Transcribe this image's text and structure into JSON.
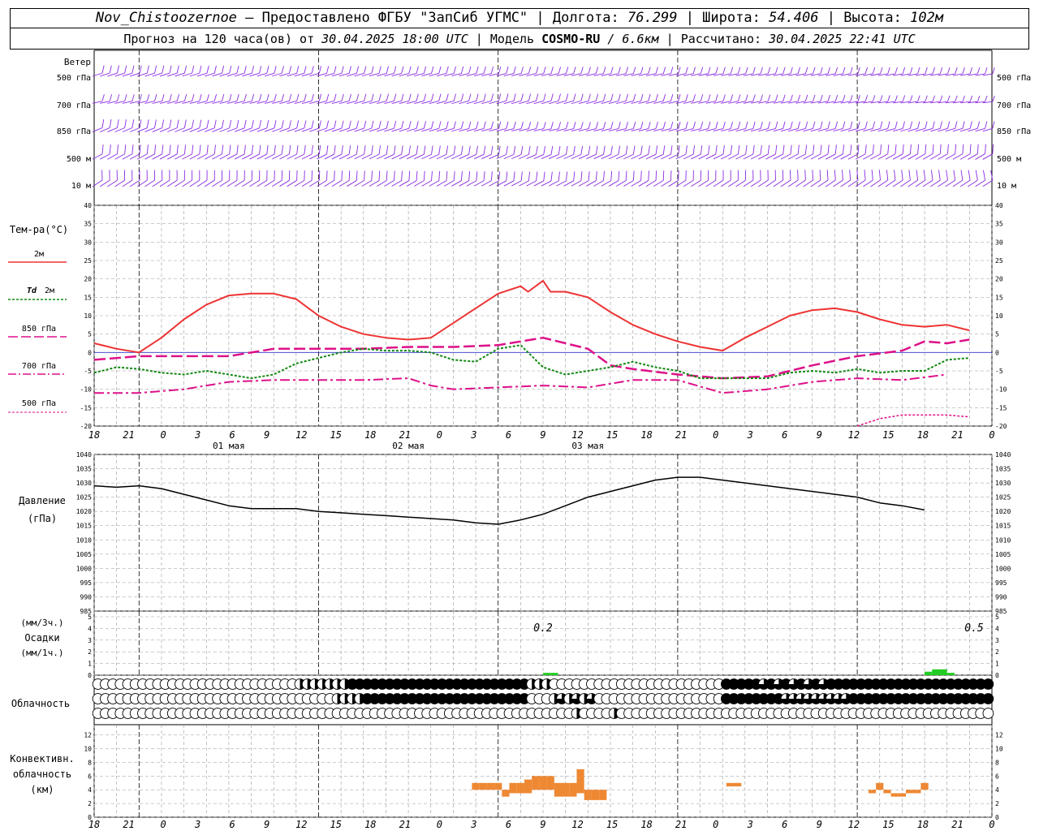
{
  "header": {
    "station": "Nov_Chistoozernoe",
    "provider": "– Предоставлено ФГБУ \"ЗапСиб УГМС\"",
    "lon_label": "Долгота:",
    "lon_value": "76.299",
    "lat_label": "Широта:",
    "lat_value": "54.406",
    "alt_label": "Высота:",
    "alt_value": "102м",
    "forecast_label": "Прогноз на 120 часа(ов) от",
    "forecast_start": "30.04.2025 18:00 UTC",
    "model_label": "Модель",
    "model_name": "COSMO-RU",
    "model_res": "/ 6.6км",
    "calc_label": "Рассчитано:",
    "calc_time": "30.04.2025 22:41 UTC"
  },
  "labels": {
    "wind": "Ветер",
    "levels": [
      "500 гПа",
      "700 гПа",
      "850 гПа",
      "500 м",
      "10 м"
    ],
    "temp_title": "Тем-ра(°C)",
    "legend_2m": "2м",
    "legend_td_prefix": "Td",
    "legend_td": "2м",
    "legend_850": "850 гПа",
    "legend_700": "700 гПа",
    "legend_500": "500 гПа",
    "pressure": "Давление",
    "pressure_unit": "(гПа)",
    "precip_unit1": "(мм/3ч.)",
    "precip": "Осадки",
    "precip_unit2": "(мм/1ч.)",
    "cloud": "Облачность",
    "conv1": "Конвективн.",
    "conv2": "облачность",
    "conv3": "(км)",
    "precip_annot": [
      "0.2",
      "0.5"
    ]
  },
  "axis": {
    "hour_ticks": [
      "18",
      "21",
      "0",
      "3",
      "6",
      "9",
      "12",
      "15",
      "18",
      "21",
      "0",
      "3",
      "6",
      "9",
      "12",
      "15",
      "18",
      "21",
      "0",
      "3",
      "6",
      "9",
      "12",
      "15",
      "18",
      "21",
      "0"
    ],
    "days": [
      "01 мая",
      "02 мая",
      "03 мая"
    ],
    "temp_ticks": [
      "40",
      "35",
      "30",
      "25",
      "20",
      "15",
      "10",
      "5",
      "0",
      "-5",
      "-10",
      "-15",
      "-20"
    ],
    "pres_ticks": [
      "1040",
      "1035",
      "1030",
      "1025",
      "1020",
      "1015",
      "1010",
      "1005",
      "1000",
      "995",
      "990",
      "985"
    ],
    "precip_ticks": [
      "5",
      "4",
      "3",
      "2",
      "1",
      "0"
    ],
    "conv_ticks": [
      "12",
      "10",
      "8",
      "6",
      "4",
      "2",
      "0"
    ]
  },
  "colors": {
    "wind": "#8a2be2",
    "t2m": "#ee3333",
    "td": "#118811",
    "t850": "#dd1188",
    "t700": "#dd1188",
    "t500": "#dd1188",
    "pressure": "#000000",
    "precip": "#22cc22",
    "conv": "#ee8833",
    "zero_line": "#3333cc",
    "grid": "#999999"
  },
  "chart_data": {
    "type": "line",
    "time_axis": "hours since 30.04.2025 18:00 UTC",
    "temp_ylim": [
      -20,
      40
    ],
    "t2m": [
      [
        0,
        2.5
      ],
      [
        3,
        1
      ],
      [
        6,
        0
      ],
      [
        9,
        4
      ],
      [
        12,
        9
      ],
      [
        15,
        13
      ],
      [
        18,
        15.5
      ],
      [
        21,
        16
      ],
      [
        24,
        16
      ],
      [
        27,
        14.5
      ],
      [
        30,
        10
      ],
      [
        33,
        7
      ],
      [
        36,
        5
      ],
      [
        39,
        4
      ],
      [
        42,
        3.5
      ],
      [
        45,
        4
      ],
      [
        48,
        8
      ],
      [
        51,
        12
      ],
      [
        54,
        16
      ],
      [
        57,
        18
      ],
      [
        58,
        16.5
      ],
      [
        60,
        19.5
      ],
      [
        61,
        16.5
      ],
      [
        63,
        16.5
      ],
      [
        66,
        15
      ],
      [
        69,
        11
      ],
      [
        72,
        7.5
      ],
      [
        75,
        5
      ],
      [
        78,
        3
      ],
      [
        81,
        1.5
      ],
      [
        84,
        0.5
      ],
      [
        87,
        4
      ],
      [
        90,
        7
      ],
      [
        93,
        10
      ],
      [
        96,
        11.5
      ],
      [
        99,
        12
      ],
      [
        102,
        11
      ],
      [
        105,
        9
      ],
      [
        108,
        7.5
      ],
      [
        111,
        7
      ],
      [
        114,
        7.5
      ],
      [
        117,
        6
      ]
    ],
    "td2m": [
      [
        0,
        -5.5
      ],
      [
        3,
        -4
      ],
      [
        6,
        -4.5
      ],
      [
        9,
        -5.5
      ],
      [
        12,
        -6
      ],
      [
        15,
        -5
      ],
      [
        18,
        -6
      ],
      [
        21,
        -7
      ],
      [
        24,
        -6
      ],
      [
        27,
        -3
      ],
      [
        30,
        -1.5
      ],
      [
        33,
        0
      ],
      [
        36,
        1
      ],
      [
        39,
        0.5
      ],
      [
        42,
        0.5
      ],
      [
        45,
        0
      ],
      [
        48,
        -2
      ],
      [
        51,
        -2.5
      ],
      [
        54,
        1
      ],
      [
        57,
        2
      ],
      [
        60,
        -4
      ],
      [
        63,
        -6
      ],
      [
        66,
        -5
      ],
      [
        69,
        -4
      ],
      [
        72,
        -2.5
      ],
      [
        75,
        -4
      ],
      [
        78,
        -5
      ],
      [
        81,
        -7
      ],
      [
        84,
        -7
      ],
      [
        87,
        -7
      ],
      [
        90,
        -7
      ],
      [
        93,
        -5.5
      ],
      [
        96,
        -5
      ],
      [
        99,
        -5.5
      ],
      [
        102,
        -4.5
      ],
      [
        105,
        -5.5
      ],
      [
        108,
        -5
      ],
      [
        111,
        -5
      ],
      [
        114,
        -2
      ],
      [
        117,
        -1.5
      ]
    ],
    "t850": [
      [
        0,
        -2
      ],
      [
        6,
        -1
      ],
      [
        12,
        -1
      ],
      [
        18,
        -1
      ],
      [
        24,
        1
      ],
      [
        30,
        1
      ],
      [
        36,
        1
      ],
      [
        42,
        1.5
      ],
      [
        48,
        1.5
      ],
      [
        54,
        2
      ],
      [
        60,
        4
      ],
      [
        63,
        2.5
      ],
      [
        66,
        1
      ],
      [
        69,
        -3.5
      ],
      [
        72,
        -4.5
      ],
      [
        78,
        -6
      ],
      [
        84,
        -7
      ],
      [
        90,
        -6.5
      ],
      [
        96,
        -3.5
      ],
      [
        102,
        -1
      ],
      [
        108,
        0.5
      ],
      [
        111,
        3
      ],
      [
        114,
        2.5
      ],
      [
        117,
        3.5
      ]
    ],
    "t700": [
      [
        0,
        -11
      ],
      [
        6,
        -11
      ],
      [
        12,
        -10
      ],
      [
        18,
        -8
      ],
      [
        24,
        -7.5
      ],
      [
        30,
        -7.5
      ],
      [
        36,
        -7.5
      ],
      [
        42,
        -7
      ],
      [
        45,
        -9
      ],
      [
        48,
        -10
      ],
      [
        54,
        -9.5
      ],
      [
        60,
        -9
      ],
      [
        66,
        -9.5
      ],
      [
        72,
        -7.5
      ],
      [
        78,
        -7.5
      ],
      [
        84,
        -11
      ],
      [
        90,
        -10
      ],
      [
        96,
        -8
      ],
      [
        102,
        -7
      ],
      [
        108,
        -7.5
      ],
      [
        114,
        -6
      ]
    ],
    "t500": [
      [
        102,
        -20
      ],
      [
        105,
        -18
      ],
      [
        108,
        -17
      ],
      [
        111,
        -17
      ],
      [
        114,
        -17
      ],
      [
        117,
        -17.5
      ]
    ],
    "pressure_ylim": [
      985,
      1040
    ],
    "pressure": [
      [
        0,
        1029
      ],
      [
        3,
        1028.5
      ],
      [
        6,
        1029
      ],
      [
        9,
        1028
      ],
      [
        12,
        1026
      ],
      [
        15,
        1024
      ],
      [
        18,
        1022
      ],
      [
        21,
        1021
      ],
      [
        24,
        1021
      ],
      [
        27,
        1021
      ],
      [
        30,
        1020
      ],
      [
        33,
        1019.5
      ],
      [
        36,
        1019
      ],
      [
        39,
        1018.5
      ],
      [
        42,
        1018
      ],
      [
        45,
        1017.5
      ],
      [
        48,
        1017
      ],
      [
        51,
        1016
      ],
      [
        54,
        1015.5
      ],
      [
        57,
        1017
      ],
      [
        60,
        1019
      ],
      [
        63,
        1022
      ],
      [
        66,
        1025
      ],
      [
        69,
        1027
      ],
      [
        72,
        1029
      ],
      [
        75,
        1031
      ],
      [
        78,
        1032
      ],
      [
        81,
        1032
      ],
      [
        84,
        1031
      ],
      [
        87,
        1030
      ],
      [
        90,
        1029
      ],
      [
        93,
        1028
      ],
      [
        96,
        1027
      ],
      [
        99,
        1026
      ],
      [
        102,
        1025
      ],
      [
        105,
        1023
      ],
      [
        108,
        1022
      ],
      [
        111,
        1020.5
      ]
    ],
    "precip": [
      [
        60,
        0.2
      ],
      [
        61,
        0.2
      ],
      [
        111,
        0.3
      ],
      [
        112,
        0.5
      ],
      [
        113,
        0.5
      ],
      [
        114,
        0.2
      ]
    ],
    "conv_cloud_base_top": [
      [
        51,
        4,
        5
      ],
      [
        52,
        4,
        5
      ],
      [
        53,
        4,
        5
      ],
      [
        54,
        4,
        5
      ],
      [
        55,
        3,
        4
      ],
      [
        56,
        3.5,
        5
      ],
      [
        57,
        3.5,
        5
      ],
      [
        58,
        3.5,
        5.5
      ],
      [
        59,
        4,
        6
      ],
      [
        60,
        4,
        6
      ],
      [
        61,
        4,
        6
      ],
      [
        62,
        3,
        5
      ],
      [
        63,
        3,
        5
      ],
      [
        64,
        3,
        5
      ],
      [
        65,
        3.5,
        7
      ],
      [
        66,
        2.5,
        4
      ],
      [
        67,
        2.5,
        4
      ],
      [
        68,
        2.5,
        4
      ],
      [
        85,
        4.5,
        5
      ],
      [
        86,
        4.5,
        5
      ],
      [
        104,
        3.5,
        4
      ],
      [
        105,
        4,
        5
      ],
      [
        106,
        3.5,
        4
      ],
      [
        107,
        3,
        3.5
      ],
      [
        108,
        3,
        3.5
      ],
      [
        109,
        3.5,
        4
      ],
      [
        110,
        3.5,
        4
      ],
      [
        111,
        4,
        5
      ]
    ]
  }
}
